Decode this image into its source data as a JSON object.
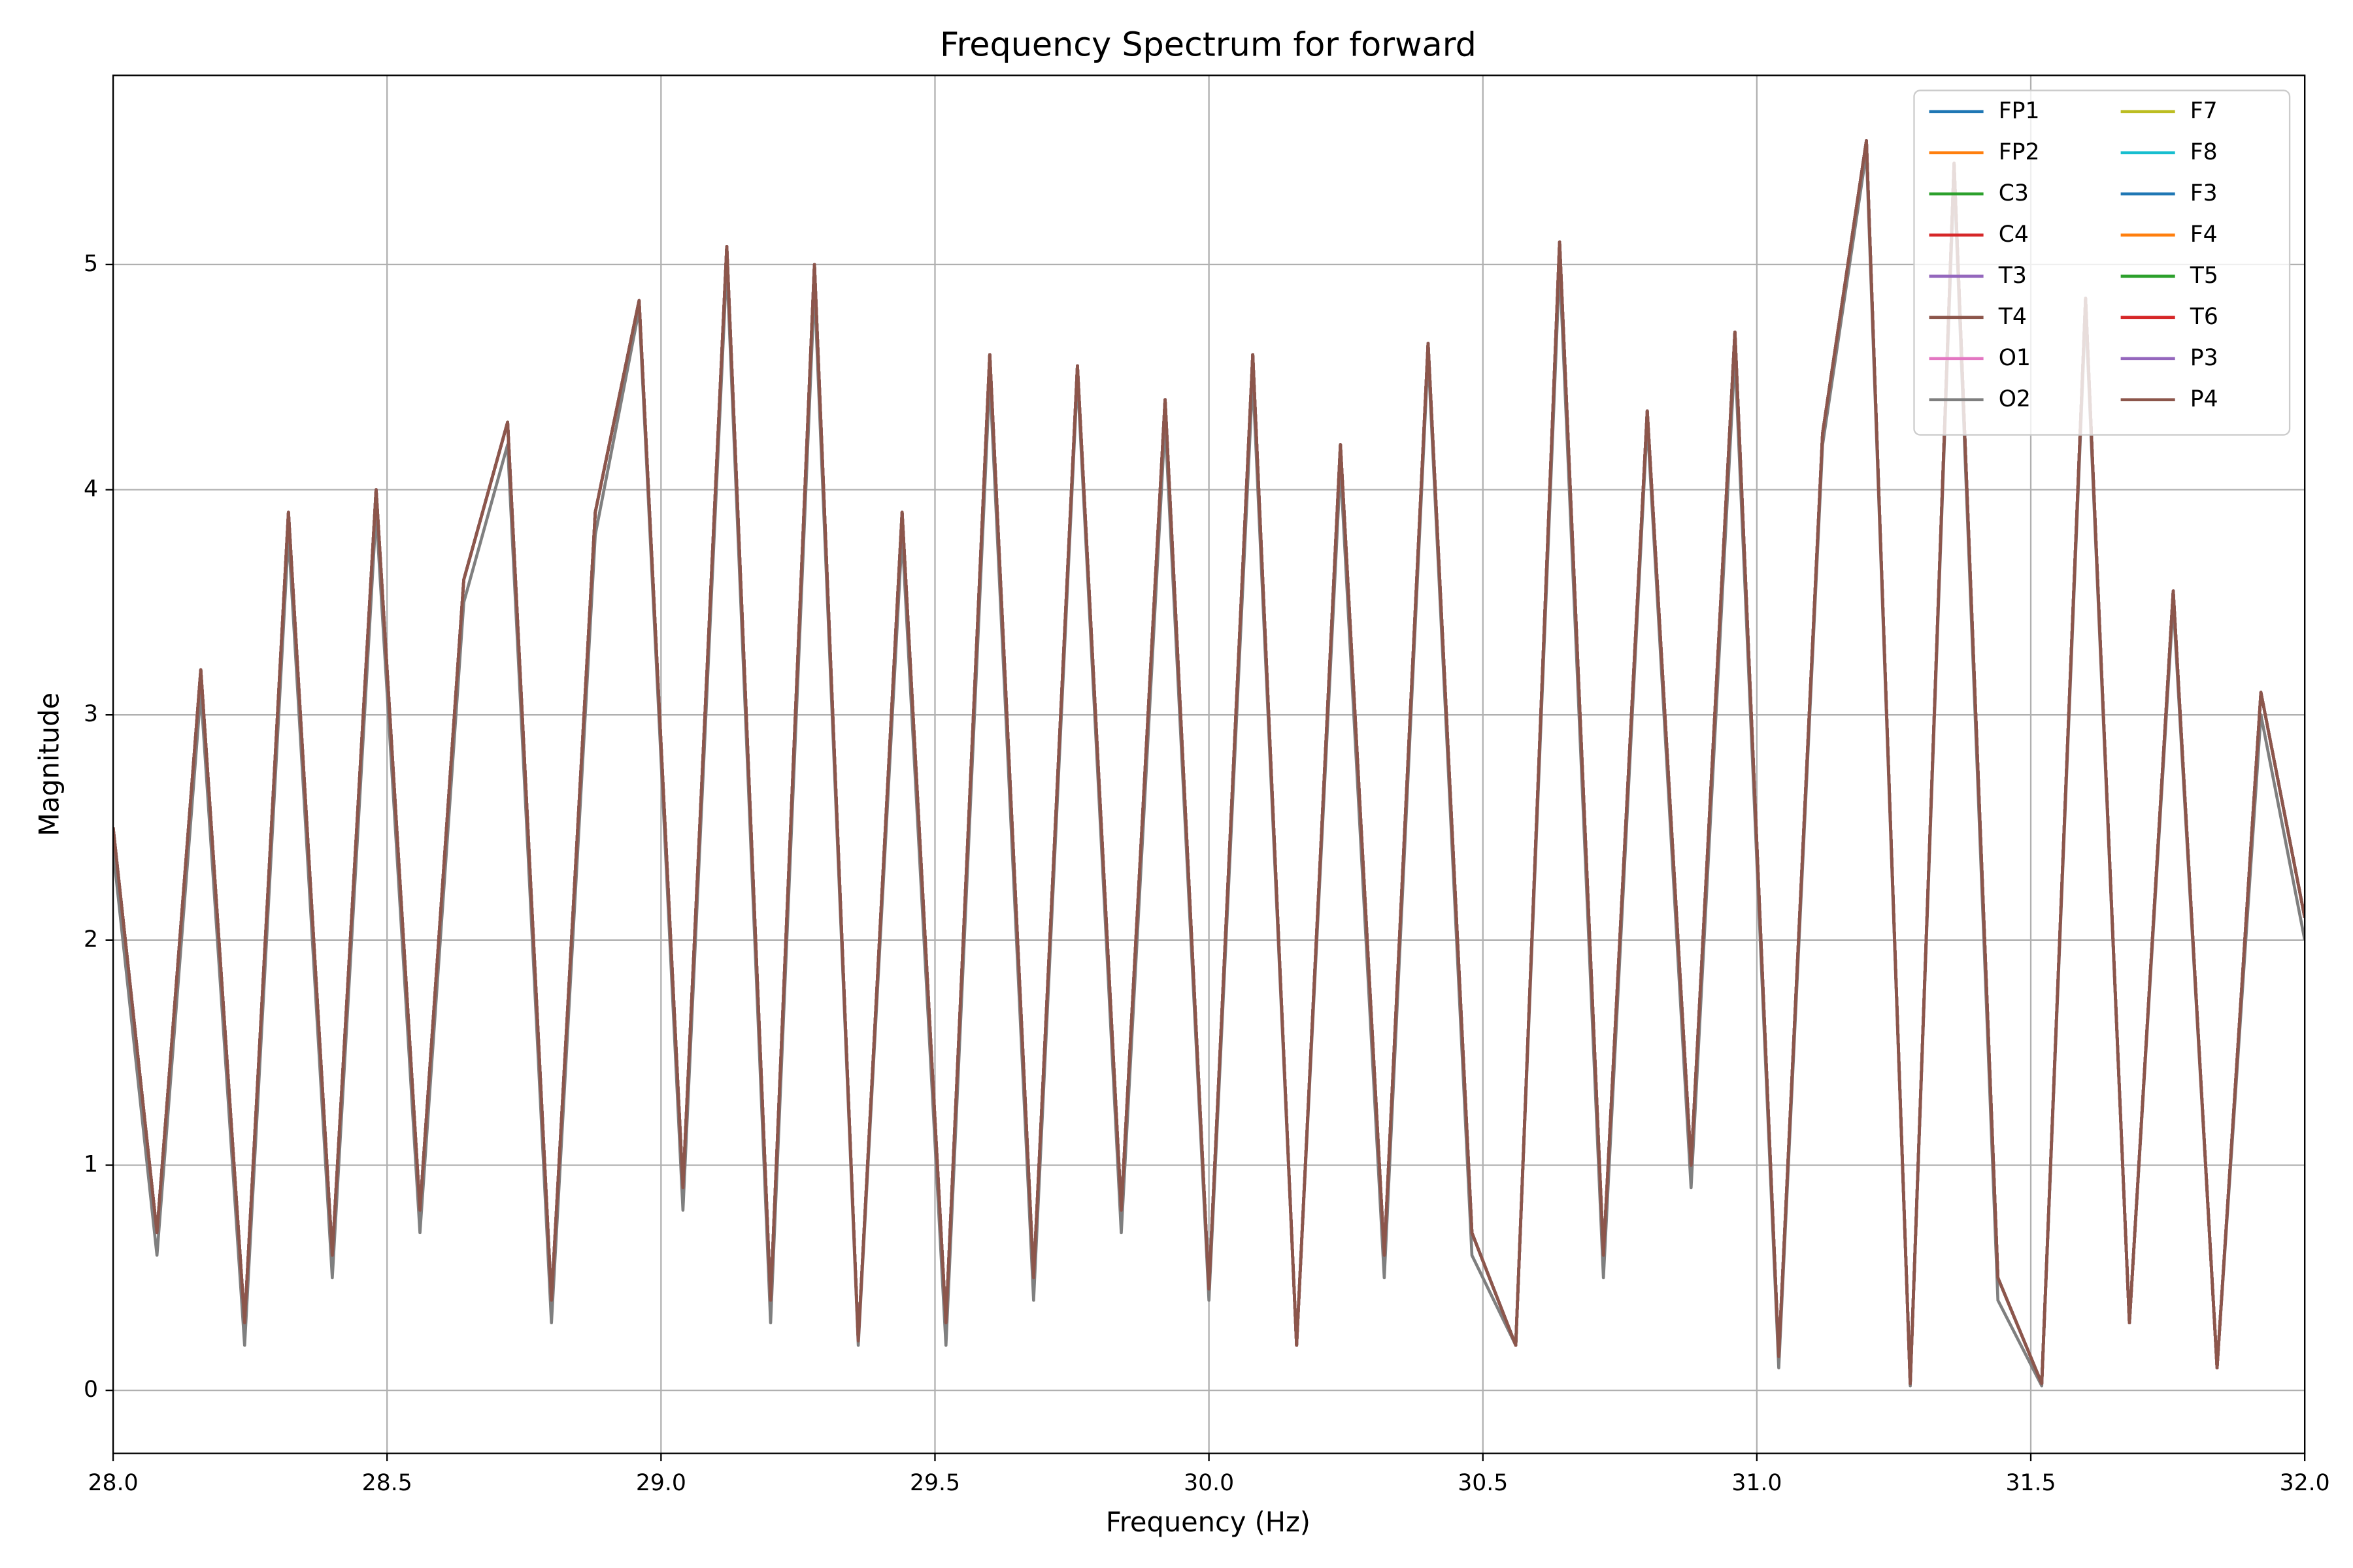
{
  "chart_data": {
    "type": "line",
    "title": "Frequency Spectrum for forward",
    "xlabel": "Frequency (Hz)",
    "ylabel": "Magnitude",
    "x": [
      28.0,
      28.08,
      28.16,
      28.24,
      28.32,
      28.4,
      28.48,
      28.56,
      28.64,
      28.72,
      28.8,
      28.88,
      28.96,
      29.04,
      29.12,
      29.2,
      29.28,
      29.36,
      29.44,
      29.52,
      29.6,
      29.68,
      29.76,
      29.84,
      29.92,
      30.0,
      30.08,
      30.16,
      30.24,
      30.32,
      30.4,
      30.48,
      30.56,
      30.64,
      30.72,
      30.8,
      30.88,
      30.96,
      31.04,
      31.12,
      31.2,
      31.28,
      31.36,
      31.44,
      31.52,
      31.6,
      31.68,
      31.76,
      31.84,
      31.92,
      32.0
    ],
    "series": [
      {
        "name": "FP1",
        "color": "#1f77b4",
        "values": [
          2.5,
          0.7,
          3.2,
          0.3,
          3.9,
          0.6,
          4.0,
          0.8,
          3.6,
          4.3,
          0.4,
          3.9,
          4.84,
          0.9,
          5.08,
          0.4,
          5.0,
          0.22,
          3.9,
          0.3,
          4.6,
          0.5,
          4.55,
          0.8,
          4.4,
          0.45,
          4.6,
          0.2,
          4.2,
          0.6,
          4.65,
          0.7,
          0.2,
          5.1,
          0.6,
          4.35,
          1.0,
          4.7,
          0.15,
          4.25,
          5.55,
          0.03,
          5.45,
          0.5,
          0.03,
          4.85,
          0.3,
          3.55,
          0.1,
          3.1,
          2.1
        ]
      },
      {
        "name": "FP2",
        "color": "#ff7f0e",
        "values": [
          2.5,
          0.7,
          3.2,
          0.3,
          3.9,
          0.6,
          4.0,
          0.8,
          3.6,
          4.3,
          0.4,
          3.9,
          4.84,
          0.9,
          5.08,
          0.4,
          5.0,
          0.22,
          3.9,
          0.3,
          4.6,
          0.5,
          4.55,
          0.8,
          4.4,
          0.45,
          4.6,
          0.2,
          4.2,
          0.6,
          4.65,
          0.7,
          0.2,
          5.1,
          0.6,
          4.35,
          1.0,
          4.7,
          0.15,
          4.25,
          5.55,
          0.03,
          5.45,
          0.5,
          0.03,
          4.85,
          0.3,
          3.55,
          0.1,
          3.1,
          2.1
        ]
      },
      {
        "name": "C3",
        "color": "#2ca02c",
        "values": [
          2.5,
          0.7,
          3.2,
          0.3,
          3.9,
          0.6,
          4.0,
          0.8,
          3.6,
          4.3,
          0.4,
          3.9,
          4.84,
          0.9,
          5.08,
          0.4,
          5.0,
          0.22,
          3.9,
          0.3,
          4.6,
          0.5,
          4.55,
          0.8,
          4.4,
          0.45,
          4.6,
          0.2,
          4.2,
          0.6,
          4.65,
          0.7,
          0.2,
          5.1,
          0.6,
          4.35,
          1.0,
          4.7,
          0.15,
          4.25,
          5.55,
          0.03,
          5.45,
          0.5,
          0.03,
          4.85,
          0.3,
          3.55,
          0.1,
          3.1,
          2.1
        ]
      },
      {
        "name": "C4",
        "color": "#d62728",
        "values": [
          2.5,
          0.7,
          3.2,
          0.3,
          3.9,
          0.6,
          4.0,
          0.8,
          3.6,
          4.3,
          0.4,
          3.9,
          4.84,
          0.9,
          5.08,
          0.4,
          5.0,
          0.22,
          3.9,
          0.3,
          4.6,
          0.5,
          4.55,
          0.8,
          4.4,
          0.45,
          4.6,
          0.2,
          4.2,
          0.6,
          4.65,
          0.7,
          0.2,
          5.1,
          0.6,
          4.35,
          1.0,
          4.7,
          0.15,
          4.25,
          5.55,
          0.03,
          5.45,
          0.5,
          0.03,
          4.85,
          0.3,
          3.55,
          0.1,
          3.1,
          2.1
        ]
      },
      {
        "name": "T3",
        "color": "#9467bd",
        "values": [
          2.5,
          0.7,
          3.2,
          0.3,
          3.9,
          0.6,
          4.0,
          0.8,
          3.6,
          4.3,
          0.4,
          3.9,
          4.84,
          0.9,
          5.08,
          0.4,
          5.0,
          0.22,
          3.9,
          0.3,
          4.6,
          0.5,
          4.55,
          0.8,
          4.4,
          0.45,
          4.6,
          0.2,
          4.2,
          0.6,
          4.65,
          0.7,
          0.2,
          5.1,
          0.6,
          4.35,
          1.0,
          4.7,
          0.15,
          4.25,
          5.55,
          0.03,
          5.45,
          0.5,
          0.03,
          4.85,
          0.3,
          3.55,
          0.1,
          3.1,
          2.1
        ]
      },
      {
        "name": "T4",
        "color": "#8c564b",
        "values": [
          2.5,
          0.7,
          3.2,
          0.3,
          3.9,
          0.6,
          4.0,
          0.8,
          3.6,
          4.3,
          0.4,
          3.9,
          4.84,
          0.9,
          5.08,
          0.4,
          5.0,
          0.22,
          3.9,
          0.3,
          4.6,
          0.5,
          4.55,
          0.8,
          4.4,
          0.45,
          4.6,
          0.2,
          4.2,
          0.6,
          4.65,
          0.7,
          0.2,
          5.1,
          0.6,
          4.35,
          1.0,
          4.7,
          0.15,
          4.25,
          5.55,
          0.03,
          5.45,
          0.5,
          0.03,
          4.85,
          0.3,
          3.55,
          0.1,
          3.1,
          2.1
        ]
      },
      {
        "name": "O1",
        "color": "#e377c2",
        "values": [
          2.5,
          0.7,
          3.2,
          0.3,
          3.9,
          0.6,
          4.0,
          0.8,
          3.6,
          4.3,
          0.4,
          3.9,
          4.84,
          0.9,
          5.08,
          0.4,
          5.0,
          0.22,
          3.9,
          0.3,
          4.6,
          0.5,
          4.55,
          0.8,
          4.4,
          0.45,
          4.6,
          0.2,
          4.2,
          0.6,
          4.65,
          0.7,
          0.2,
          5.1,
          0.6,
          4.35,
          1.0,
          4.7,
          0.15,
          4.25,
          5.55,
          0.03,
          5.45,
          0.5,
          0.03,
          4.85,
          0.3,
          3.55,
          0.1,
          3.1,
          2.1
        ]
      },
      {
        "name": "O2",
        "color": "#7f7f7f",
        "values": [
          2.4,
          0.6,
          3.1,
          0.2,
          3.8,
          0.5,
          3.9,
          0.7,
          3.5,
          4.2,
          0.3,
          3.8,
          4.8,
          0.8,
          5.0,
          0.3,
          4.9,
          0.2,
          3.8,
          0.2,
          4.5,
          0.4,
          4.5,
          0.7,
          4.3,
          0.4,
          4.5,
          0.2,
          4.1,
          0.5,
          4.6,
          0.6,
          0.2,
          5.0,
          0.5,
          4.3,
          0.9,
          4.6,
          0.1,
          4.2,
          5.5,
          0.02,
          5.4,
          0.4,
          0.02,
          4.8,
          0.3,
          3.5,
          0.1,
          3.0,
          2.0
        ]
      },
      {
        "name": "F7",
        "color": "#bcbd22",
        "values": [
          2.5,
          0.7,
          3.2,
          0.3,
          3.9,
          0.6,
          4.0,
          0.8,
          3.6,
          4.3,
          0.4,
          3.9,
          4.84,
          0.9,
          5.08,
          0.4,
          5.0,
          0.22,
          3.9,
          0.3,
          4.6,
          0.5,
          4.55,
          0.8,
          4.4,
          0.45,
          4.6,
          0.2,
          4.2,
          0.6,
          4.65,
          0.7,
          0.2,
          5.1,
          0.6,
          4.35,
          1.0,
          4.7,
          0.15,
          4.25,
          5.55,
          0.03,
          5.45,
          0.5,
          0.03,
          4.85,
          0.3,
          3.55,
          0.1,
          3.1,
          2.1
        ]
      },
      {
        "name": "F8",
        "color": "#17becf",
        "values": [
          2.5,
          0.7,
          3.2,
          0.3,
          3.9,
          0.6,
          4.0,
          0.8,
          3.6,
          4.3,
          0.4,
          3.9,
          4.84,
          0.9,
          5.08,
          0.4,
          5.0,
          0.22,
          3.9,
          0.3,
          4.6,
          0.5,
          4.55,
          0.8,
          4.4,
          0.45,
          4.6,
          0.2,
          4.2,
          0.6,
          4.65,
          0.7,
          0.2,
          5.1,
          0.6,
          4.35,
          1.0,
          4.7,
          0.15,
          4.25,
          5.55,
          0.03,
          5.45,
          0.5,
          0.03,
          4.85,
          0.3,
          3.55,
          0.1,
          3.1,
          2.1
        ]
      },
      {
        "name": "F3",
        "color": "#1f77b4",
        "values": [
          2.5,
          0.7,
          3.2,
          0.3,
          3.9,
          0.6,
          4.0,
          0.8,
          3.6,
          4.3,
          0.4,
          3.9,
          4.84,
          0.9,
          5.08,
          0.4,
          5.0,
          0.22,
          3.9,
          0.3,
          4.6,
          0.5,
          4.55,
          0.8,
          4.4,
          0.45,
          4.6,
          0.2,
          4.2,
          0.6,
          4.65,
          0.7,
          0.2,
          5.1,
          0.6,
          4.35,
          1.0,
          4.7,
          0.15,
          4.25,
          5.55,
          0.03,
          5.45,
          0.5,
          0.03,
          4.85,
          0.3,
          3.55,
          0.1,
          3.1,
          2.1
        ]
      },
      {
        "name": "F4",
        "color": "#ff7f0e",
        "values": [
          2.5,
          0.7,
          3.2,
          0.3,
          3.9,
          0.6,
          4.0,
          0.8,
          3.6,
          4.3,
          0.4,
          3.9,
          4.84,
          0.9,
          5.08,
          0.4,
          5.0,
          0.22,
          3.9,
          0.3,
          4.6,
          0.5,
          4.55,
          0.8,
          4.4,
          0.45,
          4.6,
          0.2,
          4.2,
          0.6,
          4.65,
          0.7,
          0.2,
          5.1,
          0.6,
          4.35,
          1.0,
          4.7,
          0.15,
          4.25,
          5.55,
          0.03,
          5.45,
          0.5,
          0.03,
          4.85,
          0.3,
          3.55,
          0.1,
          3.1,
          2.1
        ]
      },
      {
        "name": "T5",
        "color": "#2ca02c",
        "values": [
          2.5,
          0.7,
          3.2,
          0.3,
          3.9,
          0.6,
          4.0,
          0.8,
          3.6,
          4.3,
          0.4,
          3.9,
          4.84,
          0.9,
          5.08,
          0.4,
          5.0,
          0.22,
          3.9,
          0.3,
          4.6,
          0.5,
          4.55,
          0.8,
          4.4,
          0.45,
          4.6,
          0.2,
          4.2,
          0.6,
          4.65,
          0.7,
          0.2,
          5.1,
          0.6,
          4.35,
          1.0,
          4.7,
          0.15,
          4.25,
          5.55,
          0.03,
          5.45,
          0.5,
          0.03,
          4.85,
          0.3,
          3.55,
          0.1,
          3.1,
          2.1
        ]
      },
      {
        "name": "T6",
        "color": "#d62728",
        "values": [
          2.5,
          0.7,
          3.2,
          0.3,
          3.9,
          0.6,
          4.0,
          0.8,
          3.6,
          4.3,
          0.4,
          3.9,
          4.84,
          0.9,
          5.08,
          0.4,
          5.0,
          0.22,
          3.9,
          0.3,
          4.6,
          0.5,
          4.55,
          0.8,
          4.4,
          0.45,
          4.6,
          0.2,
          4.2,
          0.6,
          4.65,
          0.7,
          0.2,
          5.1,
          0.6,
          4.35,
          1.0,
          4.7,
          0.15,
          4.25,
          5.55,
          0.03,
          5.45,
          0.5,
          0.03,
          4.85,
          0.3,
          3.55,
          0.1,
          3.1,
          2.1
        ]
      },
      {
        "name": "P3",
        "color": "#9467bd",
        "values": [
          2.5,
          0.7,
          3.2,
          0.3,
          3.9,
          0.6,
          4.0,
          0.8,
          3.6,
          4.3,
          0.4,
          3.9,
          4.84,
          0.9,
          5.08,
          0.4,
          5.0,
          0.22,
          3.9,
          0.3,
          4.6,
          0.5,
          4.55,
          0.8,
          4.4,
          0.45,
          4.6,
          0.2,
          4.2,
          0.6,
          4.65,
          0.7,
          0.2,
          5.1,
          0.6,
          4.35,
          1.0,
          4.7,
          0.15,
          4.25,
          5.55,
          0.03,
          5.45,
          0.5,
          0.03,
          4.85,
          0.3,
          3.55,
          0.1,
          3.1,
          2.1
        ]
      },
      {
        "name": "P4",
        "color": "#8c564b",
        "values": [
          2.5,
          0.7,
          3.2,
          0.3,
          3.9,
          0.6,
          4.0,
          0.8,
          3.6,
          4.3,
          0.4,
          3.9,
          4.84,
          0.9,
          5.08,
          0.4,
          5.0,
          0.22,
          3.9,
          0.3,
          4.6,
          0.5,
          4.55,
          0.8,
          4.4,
          0.45,
          4.6,
          0.2,
          4.2,
          0.6,
          4.65,
          0.7,
          0.2,
          5.1,
          0.6,
          4.35,
          1.0,
          4.7,
          0.15,
          4.25,
          5.55,
          0.03,
          5.45,
          0.5,
          0.03,
          4.85,
          0.3,
          3.55,
          0.1,
          3.1,
          2.1
        ]
      }
    ],
    "xlim": [
      28,
      32
    ],
    "xticks": [
      {
        "value": 28,
        "label": "28.0"
      },
      28.5,
      {
        "value": 29,
        "label": "29.0"
      },
      29.5,
      {
        "value": 30,
        "label": "30.0"
      },
      30.5,
      {
        "value": 31,
        "label": "31.0"
      },
      31.5,
      {
        "value": 32,
        "label": "32.0"
      }
    ],
    "ylim": [
      -0.28,
      5.84
    ],
    "yticks": [
      0,
      1,
      2,
      3,
      4,
      5
    ],
    "grid": true,
    "legend": "upper right",
    "legend_columns": 2
  }
}
